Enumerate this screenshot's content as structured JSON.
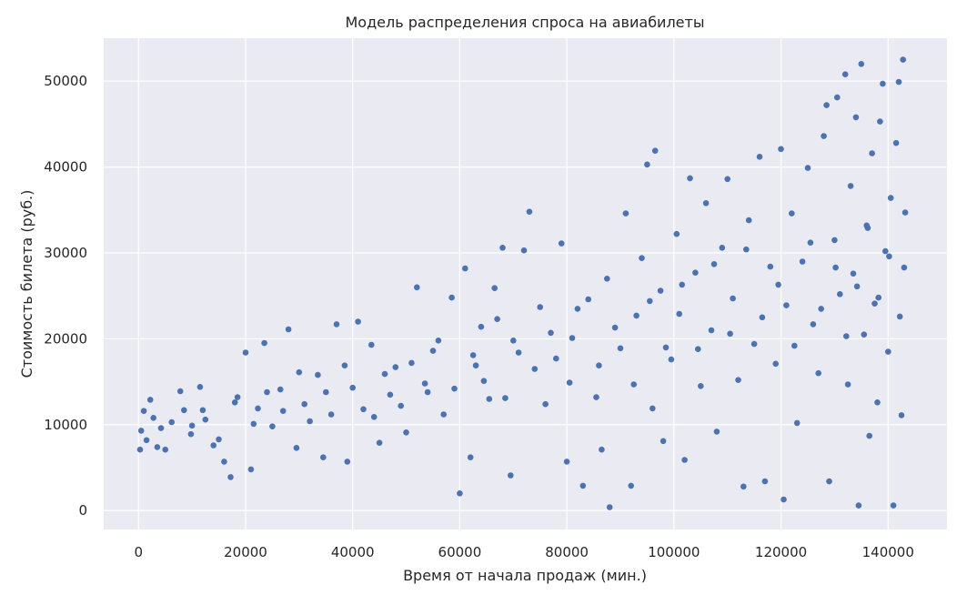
{
  "chart_data": {
    "type": "scatter",
    "title": "Модель распределения спроса на авиабилеты",
    "xlabel": "Время от начала продаж (мин.)",
    "ylabel": "Стоимость билета (руб.)",
    "xlim": [
      -6500,
      151000
    ],
    "ylim": [
      -2200,
      55000
    ],
    "x_ticks": [
      0,
      20000,
      40000,
      60000,
      80000,
      100000,
      120000,
      140000
    ],
    "y_ticks": [
      0,
      10000,
      20000,
      30000,
      40000,
      50000
    ],
    "x_tick_labels": [
      "0",
      "20000",
      "40000",
      "60000",
      "80000",
      "100000",
      "120000",
      "140000"
    ],
    "y_tick_labels": [
      "0",
      "10000",
      "20000",
      "30000",
      "40000",
      "50000"
    ],
    "grid": true,
    "legend": "none",
    "colors": {
      "points": "#4c72b0",
      "background": "#eaeaf2",
      "grid": "#ffffff"
    },
    "points": [
      [
        300,
        7100
      ],
      [
        500,
        9300
      ],
      [
        1000,
        11600
      ],
      [
        1500,
        8200
      ],
      [
        2200,
        12900
      ],
      [
        2800,
        10800
      ],
      [
        3500,
        7400
      ],
      [
        4200,
        9600
      ],
      [
        5000,
        7100
      ],
      [
        6200,
        10300
      ],
      [
        7800,
        13900
      ],
      [
        8500,
        11700
      ],
      [
        9800,
        8900
      ],
      [
        11500,
        14400
      ],
      [
        12500,
        10600
      ],
      [
        14000,
        7600
      ],
      [
        16000,
        5700
      ],
      [
        17200,
        3900
      ],
      [
        18500,
        13200
      ],
      [
        20000,
        18400
      ],
      [
        21000,
        4800
      ],
      [
        22300,
        11900
      ],
      [
        23500,
        19500
      ],
      [
        25000,
        9800
      ],
      [
        26500,
        14100
      ],
      [
        28000,
        21100
      ],
      [
        29500,
        7300
      ],
      [
        31000,
        12400
      ],
      [
        33500,
        15800
      ],
      [
        34500,
        6200
      ],
      [
        37000,
        21700
      ],
      [
        38500,
        16900
      ],
      [
        39000,
        5700
      ],
      [
        41000,
        22000
      ],
      [
        42000,
        11800
      ],
      [
        43500,
        19300
      ],
      [
        45000,
        7900
      ],
      [
        47000,
        13500
      ],
      [
        48000,
        16700
      ],
      [
        50000,
        9100
      ],
      [
        52000,
        26000
      ],
      [
        53500,
        14800
      ],
      [
        55000,
        18600
      ],
      [
        57000,
        11200
      ],
      [
        58500,
        24800
      ],
      [
        60000,
        2000
      ],
      [
        61000,
        28200
      ],
      [
        62000,
        6200
      ],
      [
        63000,
        16900
      ],
      [
        64000,
        21400
      ],
      [
        65500,
        13000
      ],
      [
        66500,
        25900
      ],
      [
        68000,
        30600
      ],
      [
        69500,
        4100
      ],
      [
        70000,
        19800
      ],
      [
        72000,
        30300
      ],
      [
        73000,
        34800
      ],
      [
        75000,
        23700
      ],
      [
        76000,
        12400
      ],
      [
        78000,
        17700
      ],
      [
        79000,
        31100
      ],
      [
        80000,
        5700
      ],
      [
        81000,
        20100
      ],
      [
        83000,
        2900
      ],
      [
        84000,
        24600
      ],
      [
        85500,
        13200
      ],
      [
        86500,
        7100
      ],
      [
        87500,
        27000
      ],
      [
        88000,
        400
      ],
      [
        90000,
        18900
      ],
      [
        91000,
        34600
      ],
      [
        92000,
        2900
      ],
      [
        93000,
        22700
      ],
      [
        94000,
        29400
      ],
      [
        95000,
        40300
      ],
      [
        96000,
        11900
      ],
      [
        96500,
        41900
      ],
      [
        97500,
        25600
      ],
      [
        98000,
        8100
      ],
      [
        99500,
        17600
      ],
      [
        100500,
        32200
      ],
      [
        101000,
        22900
      ],
      [
        102000,
        5900
      ],
      [
        103000,
        38700
      ],
      [
        104000,
        27700
      ],
      [
        105000,
        14500
      ],
      [
        106000,
        35800
      ],
      [
        107000,
        21000
      ],
      [
        108000,
        9200
      ],
      [
        109000,
        30600
      ],
      [
        110000,
        38600
      ],
      [
        111000,
        24700
      ],
      [
        112000,
        15200
      ],
      [
        113000,
        2800
      ],
      [
        114000,
        33800
      ],
      [
        115000,
        19400
      ],
      [
        116000,
        41200
      ],
      [
        117000,
        3400
      ],
      [
        118000,
        28400
      ],
      [
        119000,
        17100
      ],
      [
        120000,
        42100
      ],
      [
        120500,
        1300
      ],
      [
        121000,
        23900
      ],
      [
        122000,
        34600
      ],
      [
        123000,
        10200
      ],
      [
        124000,
        29000
      ],
      [
        125000,
        39900
      ],
      [
        126000,
        21700
      ],
      [
        127000,
        16000
      ],
      [
        128000,
        43600
      ],
      [
        128500,
        47200
      ],
      [
        129000,
        3400
      ],
      [
        130000,
        31500
      ],
      [
        130500,
        48100
      ],
      [
        131000,
        25200
      ],
      [
        132000,
        50800
      ],
      [
        132500,
        14700
      ],
      [
        133000,
        37800
      ],
      [
        133500,
        27600
      ],
      [
        134000,
        45800
      ],
      [
        134500,
        600
      ],
      [
        135000,
        52000
      ],
      [
        135500,
        20500
      ],
      [
        136000,
        33200
      ],
      [
        136500,
        8700
      ],
      [
        137000,
        41600
      ],
      [
        137500,
        24100
      ],
      [
        138000,
        12600
      ],
      [
        138500,
        45300
      ],
      [
        139000,
        49700
      ],
      [
        139500,
        30200
      ],
      [
        140000,
        18500
      ],
      [
        140500,
        36400
      ],
      [
        141000,
        600
      ],
      [
        141500,
        42800
      ],
      [
        142000,
        49900
      ],
      [
        142500,
        11100
      ],
      [
        142800,
        52500
      ],
      [
        143000,
        28300
      ],
      [
        143200,
        34700
      ],
      [
        10000,
        9900
      ],
      [
        12000,
        11700
      ],
      [
        15000,
        8300
      ],
      [
        18000,
        12600
      ],
      [
        21500,
        10100
      ],
      [
        24000,
        13800
      ],
      [
        27000,
        11600
      ],
      [
        30000,
        16100
      ],
      [
        32000,
        10400
      ],
      [
        35000,
        13800
      ],
      [
        36000,
        11200
      ],
      [
        40000,
        14300
      ],
      [
        44000,
        10900
      ],
      [
        46000,
        15900
      ],
      [
        49000,
        12200
      ],
      [
        51000,
        17200
      ],
      [
        54000,
        13800
      ],
      [
        56000,
        19800
      ],
      [
        59000,
        14200
      ],
      [
        62500,
        18100
      ],
      [
        64500,
        15100
      ],
      [
        67000,
        22300
      ],
      [
        68500,
        13100
      ],
      [
        71000,
        18400
      ],
      [
        74000,
        16500
      ],
      [
        77000,
        20700
      ],
      [
        80500,
        14900
      ],
      [
        82000,
        23500
      ],
      [
        86000,
        16900
      ],
      [
        89000,
        21300
      ],
      [
        92500,
        14700
      ],
      [
        95500,
        24400
      ],
      [
        98500,
        19000
      ],
      [
        101500,
        26300
      ],
      [
        104500,
        18800
      ],
      [
        107500,
        28700
      ],
      [
        110500,
        20600
      ],
      [
        113500,
        30400
      ],
      [
        116500,
        22500
      ],
      [
        119500,
        26300
      ],
      [
        122500,
        19200
      ],
      [
        125500,
        31200
      ],
      [
        127500,
        23500
      ],
      [
        130200,
        28300
      ],
      [
        132200,
        20300
      ],
      [
        134200,
        26100
      ],
      [
        136200,
        32900
      ],
      [
        138200,
        24800
      ],
      [
        140200,
        29600
      ],
      [
        142200,
        22600
      ]
    ]
  }
}
